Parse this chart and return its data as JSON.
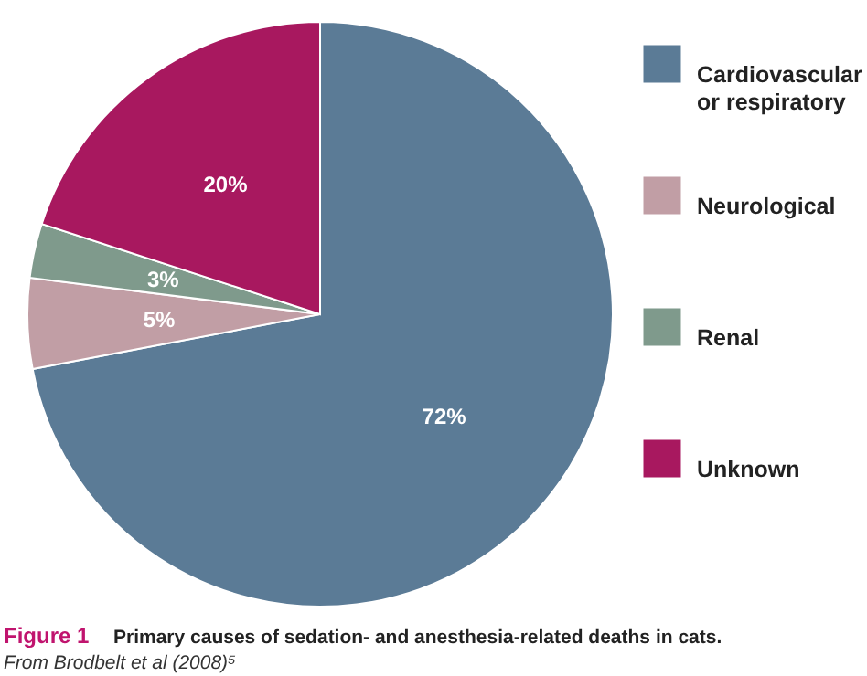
{
  "chart_data": {
    "type": "pie",
    "categories": [
      "Cardiovascular or respiratory",
      "Neurological",
      "Renal",
      "Unknown"
    ],
    "values": [
      72,
      5,
      3,
      20
    ],
    "colors": [
      "#5b7b96",
      "#c19ea5",
      "#7f9a8c",
      "#a8185f"
    ],
    "value_labels": [
      "72%",
      "5%",
      "3%",
      "20%"
    ],
    "legend": "right",
    "annotations": [
      "Figure 1",
      "Primary causes of sedation- and anesthesia-related deaths in cats.",
      "From Brodbelt et al (2008)⁵"
    ]
  }
}
